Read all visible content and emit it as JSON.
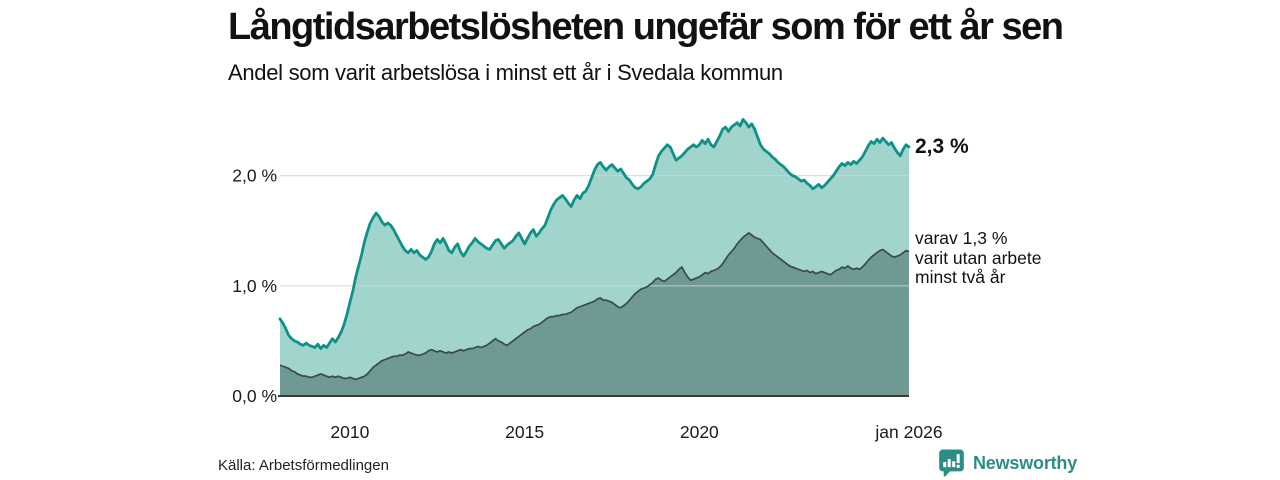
{
  "page": {
    "title": "Långtidsarbetslösheten ungefär som för ett år sen",
    "subtitle": "Andel som varit arbetslösa i minst ett år i Svedala kommun",
    "source": "Källa: Arbetsförmedlingen",
    "brand": {
      "name": "Newsworthy",
      "icon": "newsworthy-chart-bubble-icon",
      "color": "#2e8c86"
    }
  },
  "annotations": {
    "latest_total_label": "2,3 %",
    "breakdown_label": "varav 1,3 %\nvarit utan arbete\nminst två år"
  },
  "chart_data": {
    "type": "area",
    "title": "Långtidsarbetslösheten ungefär som för ett år sen",
    "subtitle": "Andel som varit arbetslösa i minst ett år i Svedala kommun",
    "x_start": "2008-01",
    "x_end": "2026-01",
    "x_step": "month",
    "xticks": [
      {
        "label": "2010",
        "year": 2010
      },
      {
        "label": "2015",
        "year": 2015
      },
      {
        "label": "2020",
        "year": 2020
      },
      {
        "label": "jan 2026",
        "year": 2026
      }
    ],
    "yticks": [
      {
        "label": "0,0 %",
        "value": 0.0
      },
      {
        "label": "1,0 %",
        "value": 1.0
      },
      {
        "label": "2,0 %",
        "value": 2.0
      }
    ],
    "ylim": [
      0,
      2.7
    ],
    "unit": "%",
    "grid": "horizontal",
    "legend_position": "right-annotations",
    "latest": {
      "total": "2,3 %",
      "two_years": "1,3 %"
    },
    "series": [
      {
        "name": "Andel arbetslösa minst ett år",
        "line_color": "#109188",
        "fill_color": "#a0d4cc",
        "values": [
          0.7,
          0.66,
          0.61,
          0.55,
          0.52,
          0.5,
          0.49,
          0.47,
          0.46,
          0.48,
          0.46,
          0.45,
          0.44,
          0.47,
          0.43,
          0.46,
          0.44,
          0.48,
          0.52,
          0.49,
          0.53,
          0.58,
          0.65,
          0.74,
          0.85,
          0.95,
          1.08,
          1.18,
          1.28,
          1.4,
          1.49,
          1.57,
          1.62,
          1.66,
          1.63,
          1.58,
          1.55,
          1.57,
          1.55,
          1.51,
          1.46,
          1.41,
          1.36,
          1.32,
          1.3,
          1.33,
          1.3,
          1.32,
          1.28,
          1.26,
          1.24,
          1.26,
          1.31,
          1.38,
          1.42,
          1.39,
          1.43,
          1.38,
          1.32,
          1.3,
          1.35,
          1.38,
          1.31,
          1.27,
          1.31,
          1.36,
          1.39,
          1.43,
          1.4,
          1.38,
          1.36,
          1.34,
          1.33,
          1.37,
          1.41,
          1.42,
          1.38,
          1.34,
          1.37,
          1.39,
          1.41,
          1.45,
          1.48,
          1.43,
          1.38,
          1.43,
          1.48,
          1.51,
          1.45,
          1.48,
          1.52,
          1.55,
          1.62,
          1.69,
          1.74,
          1.78,
          1.8,
          1.82,
          1.79,
          1.75,
          1.72,
          1.78,
          1.82,
          1.79,
          1.84,
          1.86,
          1.91,
          1.98,
          2.05,
          2.1,
          2.12,
          2.08,
          2.05,
          2.08,
          2.1,
          2.07,
          2.04,
          2.06,
          2.02,
          1.98,
          1.96,
          1.92,
          1.89,
          1.88,
          1.9,
          1.93,
          1.95,
          1.97,
          2.01,
          2.1,
          2.18,
          2.22,
          2.25,
          2.28,
          2.26,
          2.2,
          2.14,
          2.16,
          2.18,
          2.21,
          2.24,
          2.26,
          2.28,
          2.26,
          2.28,
          2.32,
          2.29,
          2.33,
          2.28,
          2.26,
          2.31,
          2.36,
          2.42,
          2.44,
          2.4,
          2.44,
          2.46,
          2.48,
          2.45,
          2.51,
          2.48,
          2.44,
          2.47,
          2.42,
          2.35,
          2.28,
          2.24,
          2.22,
          2.2,
          2.17,
          2.15,
          2.12,
          2.1,
          2.08,
          2.05,
          2.02,
          2.0,
          1.99,
          1.97,
          1.95,
          1.96,
          1.93,
          1.91,
          1.88,
          1.9,
          1.92,
          1.89,
          1.91,
          1.94,
          1.97,
          2.0,
          2.04,
          2.08,
          2.11,
          2.09,
          2.12,
          2.1,
          2.13,
          2.11,
          2.14,
          2.17,
          2.22,
          2.27,
          2.31,
          2.29,
          2.33,
          2.3,
          2.34,
          2.31,
          2.28,
          2.3,
          2.25,
          2.21,
          2.18,
          2.24,
          2.28,
          2.26
        ]
      },
      {
        "name": "varav utan arbete minst två år",
        "line_color": "#3c4a46",
        "fill_color": "#6f9a93",
        "values": [
          0.28,
          0.27,
          0.26,
          0.25,
          0.23,
          0.22,
          0.2,
          0.19,
          0.18,
          0.18,
          0.17,
          0.17,
          0.18,
          0.19,
          0.2,
          0.19,
          0.18,
          0.17,
          0.18,
          0.17,
          0.18,
          0.17,
          0.16,
          0.16,
          0.17,
          0.16,
          0.15,
          0.16,
          0.17,
          0.18,
          0.2,
          0.23,
          0.26,
          0.28,
          0.3,
          0.32,
          0.33,
          0.34,
          0.35,
          0.36,
          0.36,
          0.37,
          0.37,
          0.38,
          0.4,
          0.39,
          0.38,
          0.37,
          0.37,
          0.38,
          0.39,
          0.41,
          0.42,
          0.41,
          0.4,
          0.41,
          0.4,
          0.39,
          0.4,
          0.39,
          0.4,
          0.41,
          0.42,
          0.41,
          0.42,
          0.43,
          0.43,
          0.44,
          0.45,
          0.44,
          0.45,
          0.46,
          0.48,
          0.5,
          0.52,
          0.5,
          0.49,
          0.47,
          0.46,
          0.48,
          0.5,
          0.52,
          0.54,
          0.56,
          0.58,
          0.6,
          0.61,
          0.63,
          0.64,
          0.65,
          0.67,
          0.69,
          0.71,
          0.72,
          0.72,
          0.73,
          0.73,
          0.74,
          0.74,
          0.75,
          0.76,
          0.78,
          0.8,
          0.81,
          0.82,
          0.83,
          0.84,
          0.85,
          0.86,
          0.88,
          0.89,
          0.87,
          0.87,
          0.86,
          0.85,
          0.83,
          0.81,
          0.8,
          0.82,
          0.84,
          0.87,
          0.9,
          0.93,
          0.95,
          0.97,
          0.98,
          0.99,
          1.01,
          1.03,
          1.06,
          1.07,
          1.05,
          1.04,
          1.06,
          1.08,
          1.1,
          1.12,
          1.15,
          1.17,
          1.12,
          1.08,
          1.05,
          1.06,
          1.07,
          1.08,
          1.1,
          1.12,
          1.11,
          1.13,
          1.14,
          1.15,
          1.17,
          1.2,
          1.24,
          1.28,
          1.31,
          1.34,
          1.38,
          1.41,
          1.44,
          1.46,
          1.48,
          1.46,
          1.44,
          1.43,
          1.42,
          1.39,
          1.36,
          1.33,
          1.3,
          1.28,
          1.26,
          1.24,
          1.22,
          1.2,
          1.18,
          1.17,
          1.16,
          1.15,
          1.14,
          1.13,
          1.14,
          1.12,
          1.13,
          1.11,
          1.12,
          1.13,
          1.12,
          1.11,
          1.1,
          1.12,
          1.14,
          1.15,
          1.17,
          1.16,
          1.18,
          1.16,
          1.15,
          1.16,
          1.15,
          1.17,
          1.2,
          1.23,
          1.26,
          1.28,
          1.3,
          1.32,
          1.33,
          1.31,
          1.29,
          1.27,
          1.26,
          1.27,
          1.28,
          1.3,
          1.32,
          1.31
        ]
      }
    ]
  }
}
